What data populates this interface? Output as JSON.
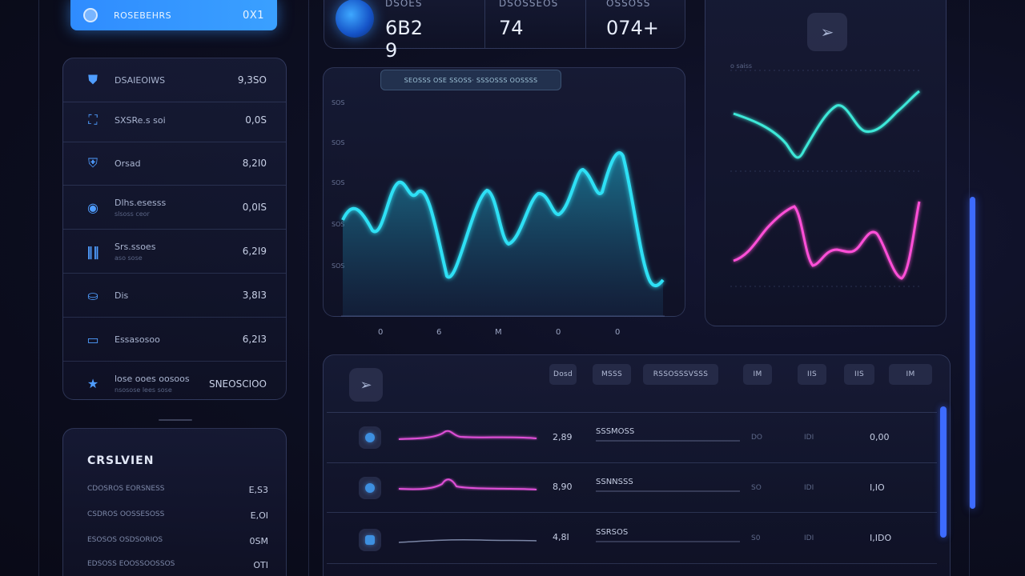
{
  "top_button": {
    "label": "ROSEBEHRS",
    "count": "0X1",
    "icon": "globe-icon"
  },
  "menu": {
    "items": [
      {
        "icon": "shield-icon",
        "label": "DSAIEOIWS",
        "sub": "",
        "value": "9,3SO"
      },
      {
        "icon": "people-icon",
        "label": "SXSRe.s soi",
        "sub": "",
        "value": "0,0S"
      },
      {
        "icon": "lock-icon",
        "label": "Orsad",
        "sub": "",
        "value": "8,2I0"
      },
      {
        "icon": "target-icon",
        "label": "Dlhs.esesss",
        "sub": "slsoss ceor",
        "value": "0,0IS"
      },
      {
        "icon": "bars-icon",
        "label": "Srs.ssoes",
        "sub": "aso sose",
        "value": "6,2I9"
      },
      {
        "icon": "user-icon",
        "label": "Dis",
        "sub": "",
        "value": "3,8I3"
      },
      {
        "icon": "card-icon",
        "label": "Essasosoo",
        "sub": "",
        "value": "6,2I3"
      },
      {
        "icon": "star-icon",
        "label": "lose ooes oosoos",
        "sub": "nsosose lees sose",
        "value": "SNEOSCIOO"
      }
    ]
  },
  "summary": {
    "title": "CRSLVIEN",
    "rows": [
      {
        "label": "CDOSROS EORSNESS",
        "value": "E,S3"
      },
      {
        "label": "CSDROS OOSSESOSS",
        "value": "E,OI"
      },
      {
        "label": "ESOSOS OSDSORIOS",
        "value": "0SM"
      },
      {
        "label": "EDSOSS EOOSSOOSSOS",
        "value": "OTI"
      }
    ]
  },
  "stats": [
    {
      "label": "DSOES",
      "value": "6B2 9"
    },
    {
      "label": "DSOSSEOS",
      "value": "74"
    },
    {
      "label": "OSSOSS",
      "value": "074+"
    }
  ],
  "main_chart": {
    "tag": "SEOSSS OSE SSOSS·  SSSOSSS OOSSSS",
    "y_ticks": [
      "SOS",
      "SOS",
      "SOS",
      "SOS",
      "SOS"
    ],
    "x_ticks": [
      "0",
      "6",
      "M",
      "0",
      "0"
    ],
    "accent": "#2fe0f5"
  },
  "right_chart": {
    "top_label": "o  saiss",
    "line1_color": "#3ee8d8",
    "line2_color": "#ff4fd8",
    "send_icon": "send-icon"
  },
  "table": {
    "icon": "send-icon",
    "headers": [
      "Dosd",
      "MSSS",
      "RSSOSSSVSSS",
      "IM",
      "IIS",
      "IIS",
      "IM"
    ],
    "rows": [
      {
        "dot": "#3d8fe0",
        "num": "2,89",
        "name": "SSSMOSS",
        "c1": "DO",
        "c2": "IDI",
        "c3": "0,00"
      },
      {
        "dot": "#3d8fe0",
        "num": "8,90",
        "name": "SSNNSSS",
        "c1": "SO",
        "c2": "IDI",
        "c3": "I,IO"
      },
      {
        "dot": "#3d8fe0",
        "num": "4,8I",
        "name": "SSRSOS",
        "c1": "S0",
        "c2": "IDI",
        "c3": "I,IDO"
      }
    ]
  }
}
